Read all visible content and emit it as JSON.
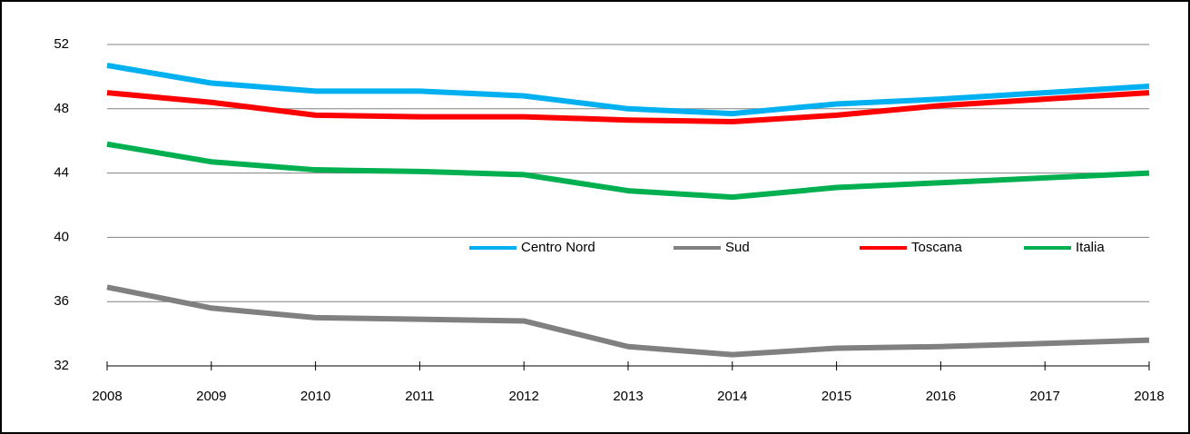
{
  "chart_data": {
    "type": "line",
    "categories": [
      "2008",
      "2009",
      "2010",
      "2011",
      "2012",
      "2013",
      "2014",
      "2015",
      "2016",
      "2017",
      "2018"
    ],
    "series": [
      {
        "name": "Centro Nord",
        "color": "#00b0f0",
        "values": [
          50.7,
          49.6,
          49.1,
          49.1,
          48.8,
          48.0,
          47.7,
          48.3,
          48.6,
          49.0,
          49.4
        ]
      },
      {
        "name": "Sud",
        "color": "#808080",
        "values": [
          36.9,
          35.6,
          35.0,
          34.9,
          34.8,
          33.2,
          32.7,
          33.1,
          33.2,
          33.4,
          33.6
        ]
      },
      {
        "name": "Toscana",
        "color": "#ff0000",
        "values": [
          49.0,
          48.4,
          47.6,
          47.5,
          47.5,
          47.3,
          47.2,
          47.6,
          48.2,
          48.6,
          49.0
        ]
      },
      {
        "name": "Italia",
        "color": "#00b050",
        "values": [
          45.8,
          44.7,
          44.2,
          44.1,
          43.9,
          42.9,
          42.5,
          43.1,
          43.4,
          43.7,
          44.0
        ]
      }
    ],
    "ylim": [
      32,
      52
    ],
    "yticks": [
      32,
      36,
      40,
      44,
      48,
      52
    ],
    "grid": true
  }
}
